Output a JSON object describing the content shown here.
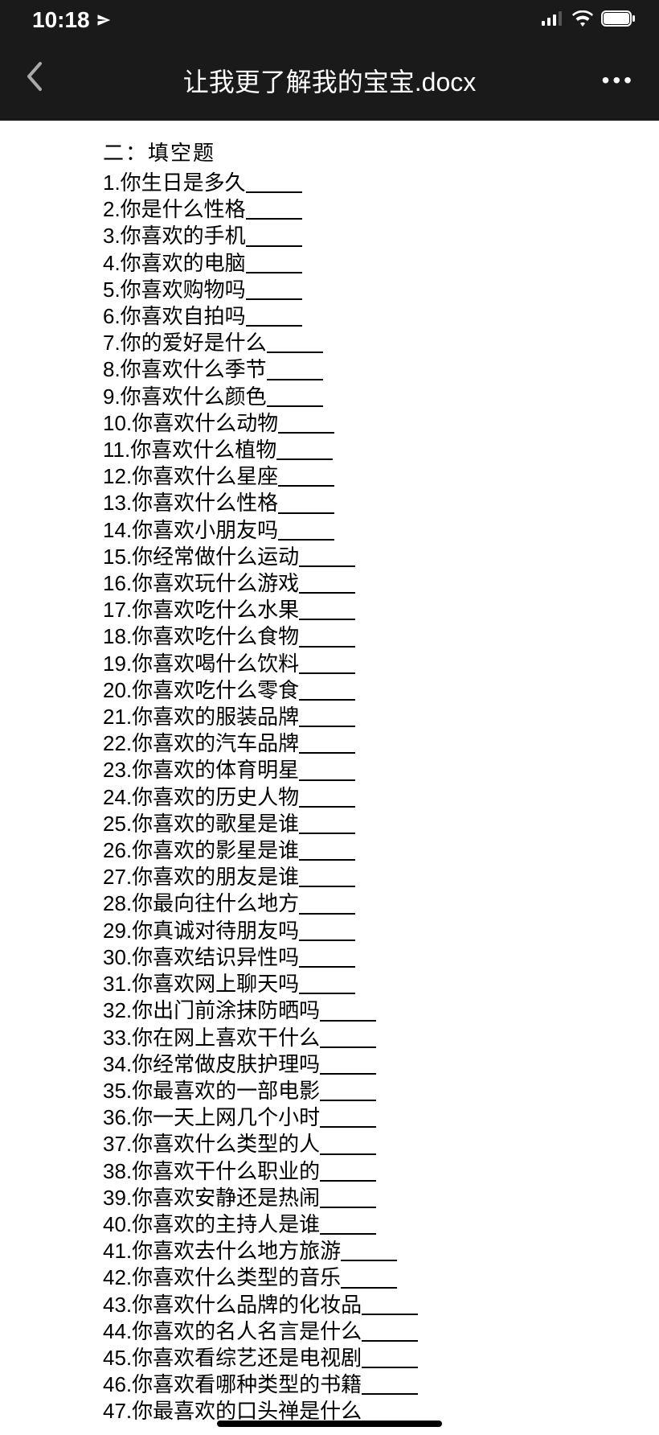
{
  "statusBar": {
    "time": "10:18"
  },
  "navBar": {
    "title": "让我更了解我的宝宝.docx"
  },
  "document": {
    "sectionTitle": "二：填空题",
    "questions": [
      "1.你生日是多久",
      "2.你是什么性格",
      "3.你喜欢的手机",
      "4.你喜欢的电脑",
      "5.你喜欢购物吗",
      "6.你喜欢自拍吗",
      "7.你的爱好是什么",
      "8.你喜欢什么季节",
      "9.你喜欢什么颜色",
      "10.你喜欢什么动物",
      "11.你喜欢什么植物",
      "12.你喜欢什么星座",
      "13.你喜欢什么性格",
      "14.你喜欢小朋友吗",
      "15.你经常做什么运动",
      "16.你喜欢玩什么游戏",
      "17.你喜欢吃什么水果",
      "18.你喜欢吃什么食物",
      "19.你喜欢喝什么饮料",
      "20.你喜欢吃什么零食",
      "21.你喜欢的服装品牌",
      "22.你喜欢的汽车品牌",
      "23.你喜欢的体育明星",
      "24.你喜欢的历史人物",
      "25.你喜欢的歌星是谁",
      "26.你喜欢的影星是谁",
      "27.你喜欢的朋友是谁",
      "28.你最向往什么地方",
      "29.你真诚对待朋友吗",
      "30.你喜欢结识异性吗",
      "31.你喜欢网上聊天吗",
      "32.你出门前涂抹防晒吗",
      "33.你在网上喜欢干什么",
      "34.你经常做皮肤护理吗",
      "35.你最喜欢的一部电影",
      "36.你一天上网几个小时",
      "37.你喜欢什么类型的人",
      "38.你喜欢干什么职业的",
      "39.你喜欢安静还是热闹",
      "40.你喜欢的主持人是谁",
      "41.你喜欢去什么地方旅游",
      "42.你喜欢什么类型的音乐",
      "43.你喜欢什么品牌的化妆品",
      "44.你喜欢的名人名言是什么",
      "45.你喜欢看综艺还是电视剧",
      "46.你喜欢看哪种类型的书籍",
      "47.你最喜欢的口头禅是什么"
    ]
  },
  "styling": {
    "backgroundColor": "#1a1a1a",
    "documentBg": "#ffffff",
    "textColor": "#000000",
    "statusTextColor": "#ffffff",
    "fontSize": 26,
    "lineHeight": 33.2,
    "blankWidth": 70
  }
}
